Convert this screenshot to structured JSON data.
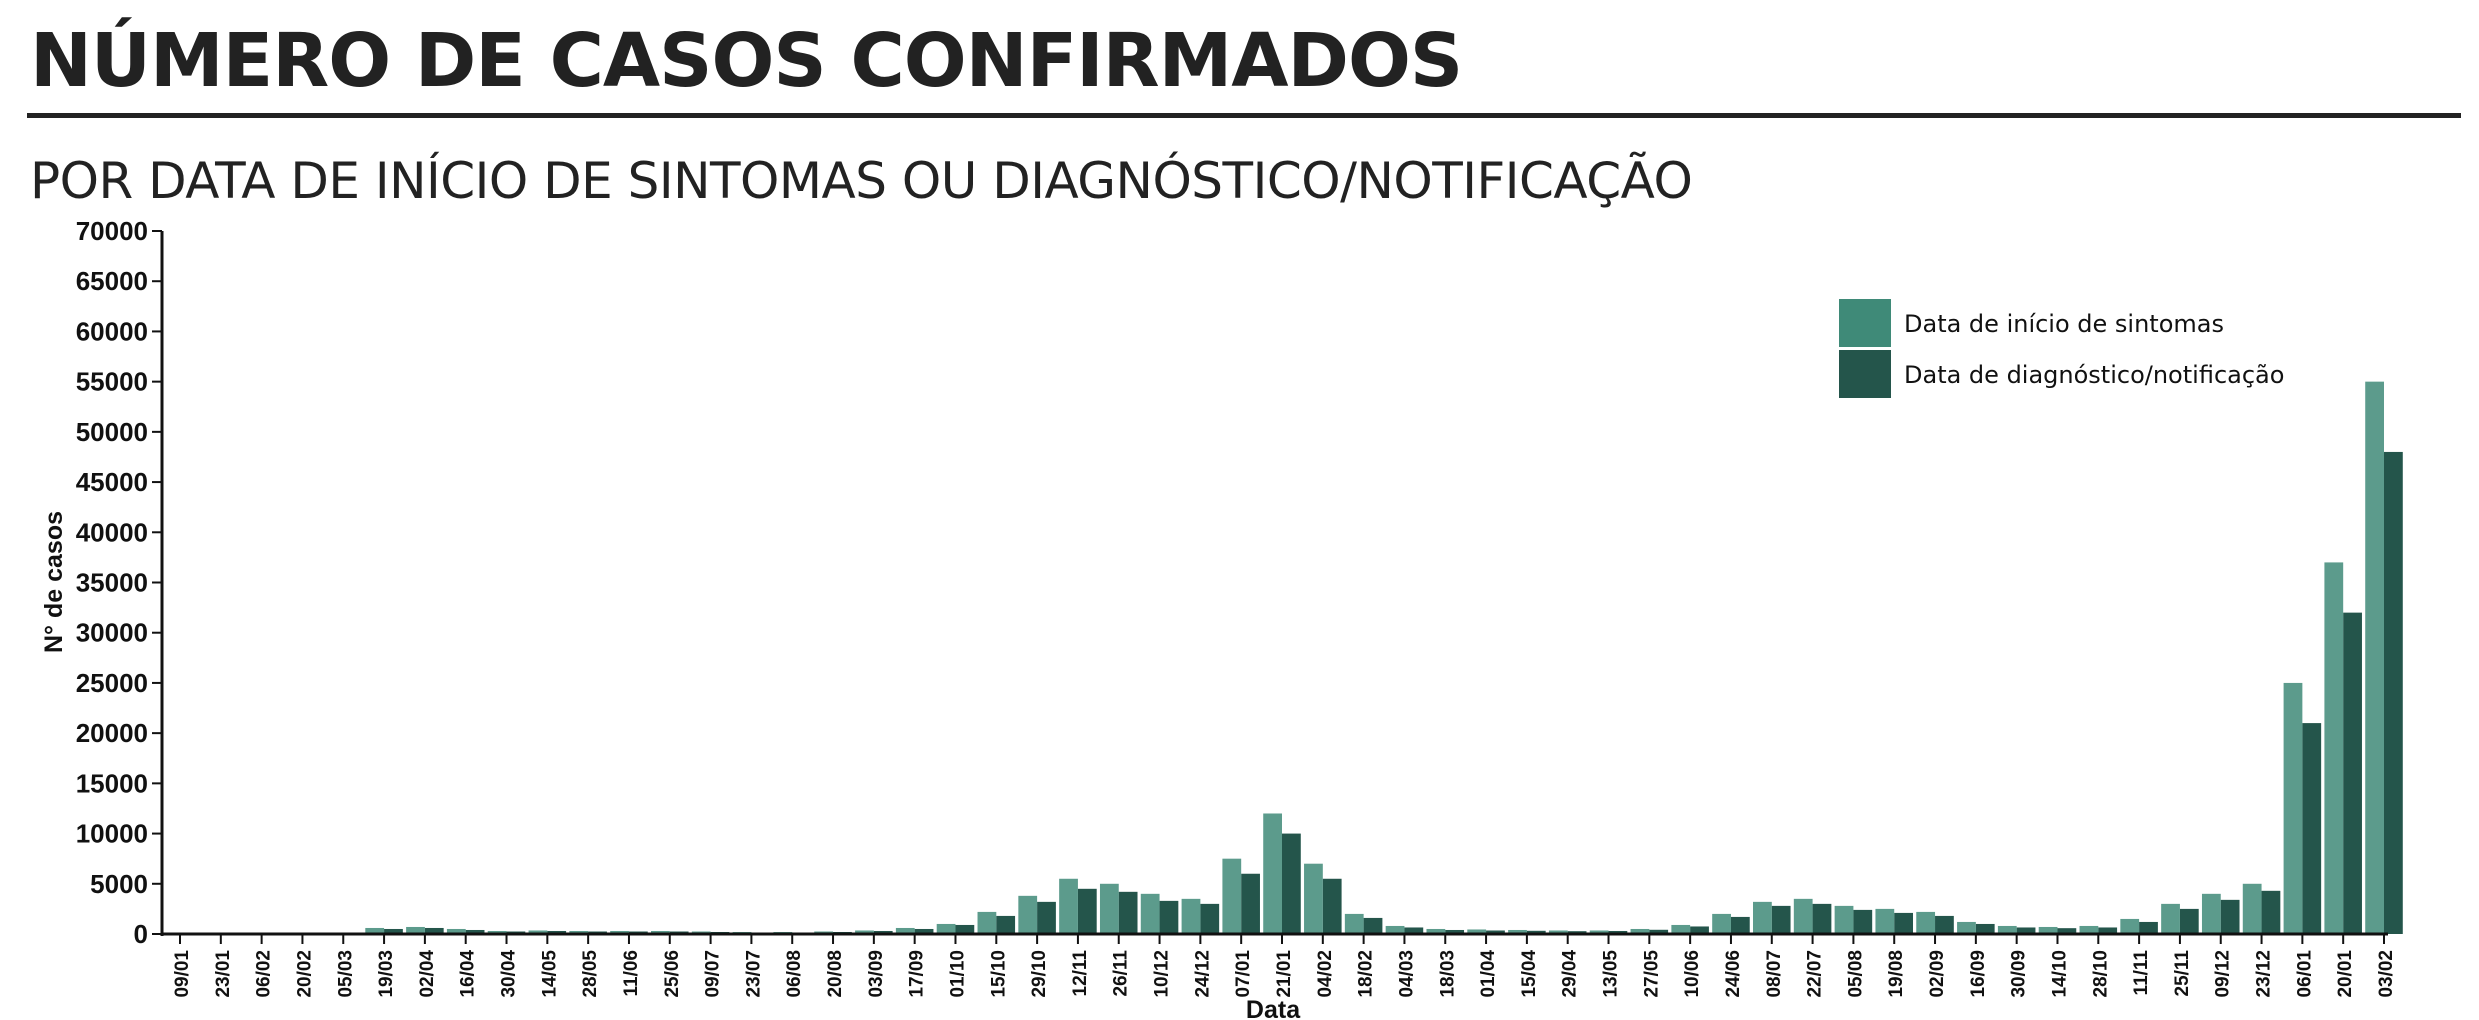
{
  "header": {
    "title": "NÚMERO DE CASOS CONFIRMADOS",
    "subtitle": "POR DATA DE INÍCIO DE SINTOMAS OU DIAGNÓSTICO/NOTIFICAÇÃO"
  },
  "colors": {
    "symptoms": "#3f8a78",
    "diagnosis": "#24554b",
    "axis": "#111111"
  },
  "chart_data": {
    "type": "bar",
    "stacked": false,
    "xlabel": "Data",
    "ylabel": "N° de casos",
    "ylim": [
      0,
      70000
    ],
    "yticks": [
      0,
      5000,
      10000,
      15000,
      20000,
      25000,
      30000,
      35000,
      40000,
      45000,
      50000,
      55000,
      60000,
      65000,
      70000
    ],
    "legend_position": "top-right",
    "grid": false,
    "categories": [
      "09/01",
      "23/01",
      "06/02",
      "20/02",
      "05/03",
      "19/03",
      "02/04",
      "16/04",
      "30/04",
      "14/05",
      "28/05",
      "11/06",
      "25/06",
      "09/07",
      "23/07",
      "06/08",
      "20/08",
      "03/09",
      "17/09",
      "01/10",
      "15/10",
      "29/10",
      "12/11",
      "26/11",
      "10/12",
      "24/12",
      "07/01",
      "21/01",
      "04/02",
      "18/02",
      "04/03",
      "18/03",
      "01/04",
      "15/04",
      "29/04",
      "13/05",
      "27/05",
      "10/06",
      "24/06",
      "08/07",
      "22/07",
      "05/08",
      "19/08",
      "02/09",
      "16/09",
      "30/09",
      "14/10",
      "28/10",
      "11/11",
      "25/11",
      "09/12",
      "23/12",
      "06/01",
      "20/01",
      "03/02"
    ],
    "series": [
      {
        "name": "Data de início de sintomas",
        "values": [
          0,
          0,
          0,
          0,
          50,
          600,
          700,
          500,
          300,
          350,
          300,
          300,
          300,
          250,
          200,
          200,
          250,
          350,
          600,
          1000,
          2200,
          3800,
          5500,
          5000,
          4000,
          3500,
          7500,
          12000,
          7000,
          2000,
          800,
          500,
          450,
          400,
          350,
          350,
          500,
          900,
          2000,
          3200,
          3500,
          2800,
          2500,
          2200,
          1200,
          800,
          700,
          800,
          1500,
          3000,
          4000,
          5000,
          25000,
          37000,
          55000
        ]
      },
      {
        "name": "Data de diagnóstico/notificação",
        "values": [
          0,
          0,
          0,
          0,
          30,
          500,
          600,
          400,
          250,
          300,
          250,
          250,
          250,
          200,
          150,
          150,
          200,
          300,
          500,
          900,
          1800,
          3200,
          4500,
          4200,
          3300,
          3000,
          6000,
          10000,
          5500,
          1600,
          650,
          400,
          350,
          320,
          280,
          300,
          420,
          750,
          1700,
          2800,
          3000,
          2400,
          2100,
          1800,
          1000,
          650,
          580,
          650,
          1200,
          2500,
          3400,
          4300,
          21000,
          32000,
          48000
        ]
      }
    ]
  }
}
